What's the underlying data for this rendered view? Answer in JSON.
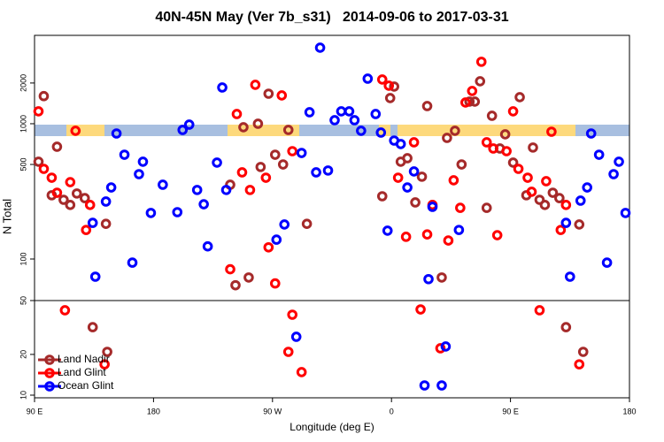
{
  "chart_data": [
    {
      "type": "scatter",
      "title": "40N-45N May (Ver 7b_s31)   2014-09-06 to 2017-03-31",
      "ylabel": "N Total",
      "xlim": [
        90,
        540
      ],
      "ylim": [
        49.3,
        4500
      ],
      "yscale": "log",
      "yticks": [
        100,
        500,
        1000,
        2000
      ],
      "series": [
        {
          "color": "#a52a2a",
          "x": [
            97,
            93,
            107,
            103,
            112,
            117,
            122,
            128,
            144,
            238,
            242,
            248,
            252,
            259,
            261,
            267,
            272,
            278,
            282,
            296,
            353,
            359,
            362,
            367,
            372,
            378,
            383,
            387,
            398,
            402,
            408,
            413,
            419,
            423,
            427,
            432,
            436,
            442,
            446,
            452,
            457,
            462,
            467,
            472,
            476,
            482,
            487,
            502
          ],
          "values": [
            1600,
            524,
            676,
            296,
            274,
            251,
            305,
            282,
            182,
            354,
            64,
            942,
            73,
            1000,
            479,
            1667,
            590,
            500,
            900,
            182,
            291,
            1548,
            1883,
            524,
            556,
            262,
            406,
            1351,
            73,
            786,
            887,
            500,
            1457,
            1457,
            2060,
            239,
            1145,
            656,
            835,
            516,
            1571,
            296,
            667,
            274,
            251,
            309,
            282,
            180
          ]
        },
        {
          "color": "#ff0000",
          "x": [
            93,
            97,
            103,
            107,
            117,
            121,
            129,
            132,
            238,
            243,
            247,
            253,
            257,
            265,
            267,
            272,
            277,
            285,
            353,
            358,
            365,
            371,
            377,
            387,
            391,
            403,
            407,
            412,
            416,
            421,
            428,
            432,
            437,
            440,
            447,
            452,
            456,
            463,
            466,
            477,
            481,
            488,
            492
          ],
          "values": [
            1235,
            464,
            399,
            309,
            370,
            887,
            164,
            251,
            84,
            1180,
            437,
            324,
            1940,
            399,
            122,
            66,
            1619,
            627,
            2123,
            1910,
            399,
            146,
            729,
            152,
            251,
            137,
            382,
            239,
            1435,
            1746,
            2871,
            729,
            656,
            150,
            627,
            1235,
            464,
            399,
            314,
            376,
            873,
            164,
            251
          ]
        },
        {
          "color": "#0000ff",
          "x": [
            134,
            136,
            144,
            148,
            152,
            158,
            164,
            169,
            172,
            178,
            187,
            198,
            202,
            207,
            213,
            218,
            221,
            228,
            232,
            235,
            273,
            279,
            292,
            298,
            303,
            306,
            312,
            317,
            322,
            328,
            332,
            337,
            342,
            348,
            352,
            357,
            362,
            367,
            372,
            377,
            388,
            391,
            411,
            492,
            495,
            503,
            508,
            511,
            517,
            523,
            528,
            532,
            537
          ],
          "values": [
            185,
            74,
            266,
            338,
            847,
            590,
            94,
            424,
            524,
            219,
            354,
            222,
            900,
            985,
            324,
            254,
            124,
            516,
            1853,
            324,
            139,
            180,
            608,
            1216,
            437,
            3648,
            451,
            1062,
            1235,
            1235,
            1062,
            887,
            2154,
            1180,
            860,
            162,
            751,
            708,
            338,
            444,
            71,
            243,
            164,
            185,
            74,
            270,
            338,
            847,
            590,
            94,
            424,
            524,
            219
          ]
        }
      ]
    },
    {
      "type": "scatter",
      "xlabel": "Longitude (deg E)",
      "xlim": [
        90,
        540
      ],
      "ylim": [
        9.56,
        50
      ],
      "yscale": "log",
      "yticks": [
        10,
        20,
        50
      ],
      "xticks": [
        {
          "value": 90,
          "label": "90 E"
        },
        180,
        {
          "value": 270,
          "label": "90 W"
        },
        {
          "value": 360,
          "label": "0"
        },
        {
          "value": 450,
          "label": "90 E"
        },
        {
          "value": 540,
          "label": "180"
        }
      ],
      "legend": "lower left",
      "series": [
        {
          "name": "Land Nadir",
          "color": "#a52a2a",
          "x": [
            134,
            145,
            492,
            505
          ],
          "values": [
            31.8,
            20.9,
            31.8,
            20.9
          ]
        },
        {
          "name": "Land Glint",
          "color": "#ff0000",
          "x": [
            113,
            143,
            285,
            282,
            292,
            382,
            397,
            472,
            502
          ],
          "values": [
            42.4,
            16.9,
            39.3,
            20.9,
            14.8,
            43.0,
            22.2,
            42.4,
            16.9
          ]
        },
        {
          "name": "Ocean Glint",
          "color": "#0000ff",
          "x": [
            288,
            385,
            398,
            401
          ],
          "values": [
            27.0,
            11.8,
            11.8,
            22.9
          ]
        }
      ]
    }
  ]
}
